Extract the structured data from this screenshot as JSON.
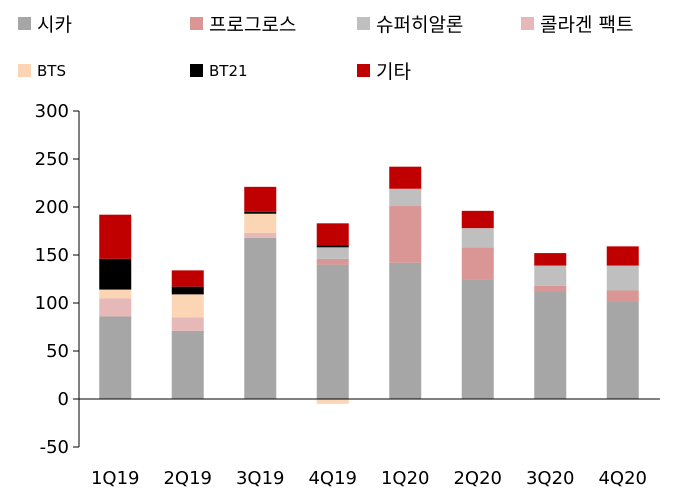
{
  "chart_data": {
    "type": "bar",
    "stacked": true,
    "categories": [
      "1Q19",
      "2Q19",
      "3Q19",
      "4Q19",
      "1Q20",
      "2Q20",
      "3Q20",
      "4Q20"
    ],
    "ylim": [
      -50,
      300
    ],
    "yticks": [
      -50,
      0,
      50,
      100,
      150,
      200,
      250,
      300
    ],
    "title": "",
    "xlabel": "",
    "ylabel": "",
    "grid": false,
    "legend_position": "top",
    "series": [
      {
        "name": "시카",
        "color": "#A6A6A6",
        "values": [
          86,
          71,
          168,
          140,
          142,
          124,
          112,
          102
        ]
      },
      {
        "name": "프로그로스",
        "color": "#DA9694",
        "values": [
          0,
          0,
          0,
          6,
          59,
          34,
          6,
          11
        ]
      },
      {
        "name": "슈퍼히알론",
        "color": "#BFBFBF",
        "values": [
          0,
          0,
          0,
          12,
          18,
          20,
          21,
          26
        ]
      },
      {
        "name": "콜라겐 팩트",
        "color": "#E6B8B7",
        "values": [
          19,
          14,
          5,
          0,
          0,
          0,
          0,
          0
        ]
      },
      {
        "name": "BTS",
        "color": "#FCD5B4",
        "values": [
          9,
          24,
          20,
          -5,
          0,
          0,
          0,
          0
        ]
      },
      {
        "name": "BT21",
        "color": "#000000",
        "values": [
          32,
          8,
          2,
          2,
          0,
          0,
          0,
          0
        ]
      },
      {
        "name": "기타",
        "color": "#C00000",
        "values": [
          46,
          17,
          26,
          23,
          23,
          18,
          13,
          20
        ]
      }
    ]
  }
}
